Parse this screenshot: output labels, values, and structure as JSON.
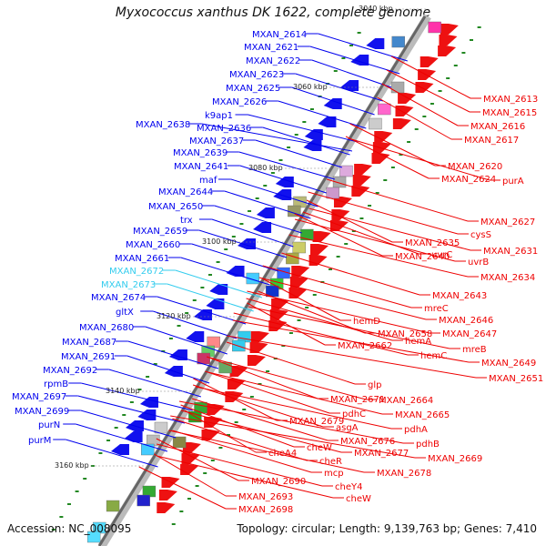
{
  "title": "Myxococcus xanthus DK 1622, complete genome",
  "accession": "Accession: NC_008095",
  "summary": "Topology: circular; Length: 9,139,763 bp; Genes: 7,410",
  "colors": {
    "plus_strand": "#0000ee",
    "minus_strand": "#ee0000",
    "highlight": "#33ccee",
    "backbone": "#999999"
  },
  "kbp_markers": [
    "3040 kbp",
    "3060 kbp",
    "3080 kbp",
    "3100 kbp",
    "3120 kbp",
    "3140 kbp",
    "3160 kbp"
  ],
  "left_labels": [
    {
      "text": "MXAN_2614",
      "color": "blue"
    },
    {
      "text": "MXAN_2621",
      "color": "blue"
    },
    {
      "text": "MXAN_2622",
      "color": "blue"
    },
    {
      "text": "MXAN_2623",
      "color": "blue"
    },
    {
      "text": "MXAN_2625",
      "color": "blue"
    },
    {
      "text": "MXAN_2626",
      "color": "blue"
    },
    {
      "text": "k9ap1",
      "color": "blue"
    },
    {
      "text": "MXAN_2638",
      "color": "blue"
    },
    {
      "text": "MXAN_2636",
      "color": "blue"
    },
    {
      "text": "MXAN_2637",
      "color": "blue"
    },
    {
      "text": "MXAN_2639",
      "color": "blue"
    },
    {
      "text": "MXAN_2641",
      "color": "blue"
    },
    {
      "text": "maf",
      "color": "blue"
    },
    {
      "text": "MXAN_2644",
      "color": "blue"
    },
    {
      "text": "MXAN_2650",
      "color": "blue"
    },
    {
      "text": "trx",
      "color": "blue"
    },
    {
      "text": "MXAN_2659",
      "color": "blue"
    },
    {
      "text": "MXAN_2660",
      "color": "blue"
    },
    {
      "text": "MXAN_2661",
      "color": "blue"
    },
    {
      "text": "MXAN_2672",
      "color": "cyan"
    },
    {
      "text": "MXAN_2673",
      "color": "cyan"
    },
    {
      "text": "MXAN_2674",
      "color": "blue"
    },
    {
      "text": "gltX",
      "color": "blue"
    },
    {
      "text": "MXAN_2680",
      "color": "blue"
    },
    {
      "text": "MXAN_2687",
      "color": "blue"
    },
    {
      "text": "MXAN_2691",
      "color": "blue"
    },
    {
      "text": "MXAN_2692",
      "color": "blue"
    },
    {
      "text": "rpmB",
      "color": "blue"
    },
    {
      "text": "MXAN_2697",
      "color": "blue"
    },
    {
      "text": "MXAN_2699",
      "color": "blue"
    },
    {
      "text": "purN",
      "color": "blue"
    },
    {
      "text": "purM",
      "color": "blue"
    }
  ],
  "right_labels": [
    {
      "text": "MXAN_2613"
    },
    {
      "text": "MXAN_2615"
    },
    {
      "text": "MXAN_2616"
    },
    {
      "text": "MXAN_2617"
    },
    {
      "text": "MXAN_2620"
    },
    {
      "text": "MXAN_2624"
    },
    {
      "text": "purA"
    },
    {
      "text": "MXAN_2627"
    },
    {
      "text": "cysS"
    },
    {
      "text": "MXAN_2635"
    },
    {
      "text": "uvrC"
    },
    {
      "text": "MXAN_2631"
    },
    {
      "text": "MXAN_2640"
    },
    {
      "text": "uvrB"
    },
    {
      "text": "MXAN_2634"
    },
    {
      "text": "MXAN_2643"
    },
    {
      "text": "mreC"
    },
    {
      "text": "MXAN_2646"
    },
    {
      "text": "hemD"
    },
    {
      "text": "MXAN_2658"
    },
    {
      "text": "MXAN_2647"
    },
    {
      "text": "hemA"
    },
    {
      "text": "MXAN_2662"
    },
    {
      "text": "mreB"
    },
    {
      "text": "hemC"
    },
    {
      "text": "MXAN_2649"
    },
    {
      "text": "MXAN_2651"
    },
    {
      "text": "glp"
    },
    {
      "text": "MXAN_2671"
    },
    {
      "text": "MXAN_2664"
    },
    {
      "text": "pdhC"
    },
    {
      "text": "MXAN_2665"
    },
    {
      "text": "MXAN_2679"
    },
    {
      "text": "asgA"
    },
    {
      "text": "pdhA"
    },
    {
      "text": "MXAN_2676"
    },
    {
      "text": "pdhB"
    },
    {
      "text": "cheW"
    },
    {
      "text": "MXAN_2677"
    },
    {
      "text": "cheA4"
    },
    {
      "text": "MXAN_2669"
    },
    {
      "text": "cheR"
    },
    {
      "text": "MXAN_2678"
    },
    {
      "text": "mcp"
    },
    {
      "text": "MXAN_2690"
    },
    {
      "text": "cheY4"
    },
    {
      "text": "MXAN_2693"
    },
    {
      "text": "cheW"
    },
    {
      "text": "MXAN_2698"
    }
  ]
}
